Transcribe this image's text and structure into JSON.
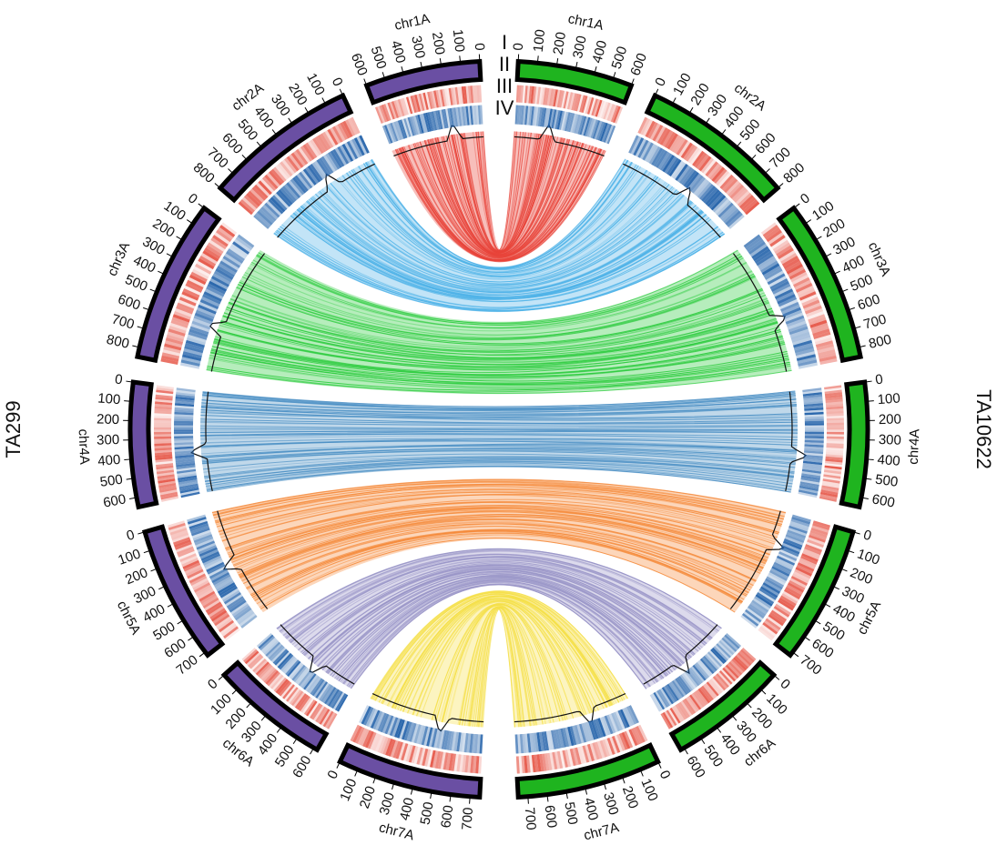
{
  "chart_data": {
    "type": "circos",
    "genomes": [
      {
        "name": "TA299",
        "color": "#6a4fa3",
        "side": "left"
      },
      {
        "name": "TA10622",
        "color": "#1fb41f",
        "side": "right"
      }
    ],
    "chromosomes": [
      {
        "name": "chr1A",
        "length": 600,
        "ticks": [
          0,
          100,
          200,
          300,
          400,
          500,
          600
        ],
        "link_color": "#e8443a"
      },
      {
        "name": "chr2A",
        "length": 800,
        "ticks": [
          0,
          100,
          200,
          300,
          400,
          500,
          600,
          700,
          800
        ],
        "link_color": "#4fb3e8"
      },
      {
        "name": "chr3A",
        "length": 850,
        "ticks": [
          0,
          100,
          200,
          300,
          400,
          500,
          600,
          700,
          800
        ],
        "link_color": "#2ecc40"
      },
      {
        "name": "chr4A",
        "length": 650,
        "ticks": [
          0,
          100,
          200,
          300,
          400,
          500,
          600
        ],
        "link_color": "#4a8fc4"
      },
      {
        "name": "chr5A",
        "length": 720,
        "ticks": [
          0,
          100,
          200,
          300,
          400,
          500,
          600,
          700
        ],
        "link_color": "#f58a3a"
      },
      {
        "name": "chr6A",
        "length": 620,
        "ticks": [
          0,
          100,
          200,
          300,
          400,
          500,
          600
        ],
        "link_color": "#9a96c8"
      },
      {
        "name": "chr7A",
        "length": 750,
        "ticks": [
          0,
          100,
          200,
          300,
          400,
          500,
          600,
          700
        ],
        "link_color": "#f5e04a"
      }
    ],
    "track_labels": [
      "I",
      "II",
      "III",
      "IV"
    ]
  }
}
